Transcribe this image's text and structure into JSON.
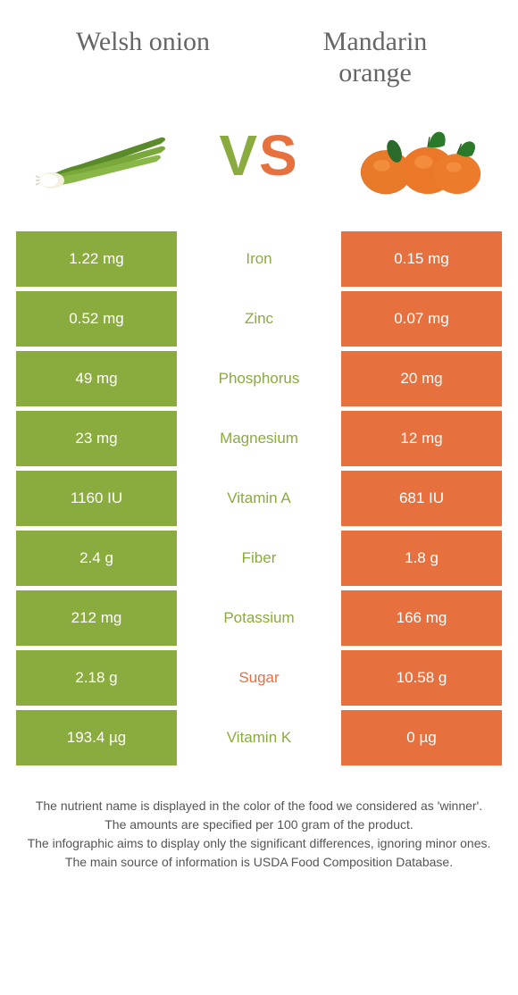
{
  "left": {
    "title": "Welsh onion"
  },
  "right": {
    "title": "Mandarin orange"
  },
  "vs": {
    "v": "V",
    "s": "S"
  },
  "colors": {
    "left": "#8aab3e",
    "right": "#e7703f",
    "text": "#555555"
  },
  "rows": [
    {
      "nutrient": "Iron",
      "left": "1.22 mg",
      "right": "0.15 mg",
      "winner": "left"
    },
    {
      "nutrient": "Zinc",
      "left": "0.52 mg",
      "right": "0.07 mg",
      "winner": "left"
    },
    {
      "nutrient": "Phosphorus",
      "left": "49 mg",
      "right": "20 mg",
      "winner": "left"
    },
    {
      "nutrient": "Magnesium",
      "left": "23 mg",
      "right": "12 mg",
      "winner": "left"
    },
    {
      "nutrient": "Vitamin A",
      "left": "1160 IU",
      "right": "681 IU",
      "winner": "left"
    },
    {
      "nutrient": "Fiber",
      "left": "2.4 g",
      "right": "1.8 g",
      "winner": "left"
    },
    {
      "nutrient": "Potassium",
      "left": "212 mg",
      "right": "166 mg",
      "winner": "left"
    },
    {
      "nutrient": "Sugar",
      "left": "2.18 g",
      "right": "10.58 g",
      "winner": "right"
    },
    {
      "nutrient": "Vitamin K",
      "left": "193.4 µg",
      "right": "0 µg",
      "winner": "left"
    }
  ],
  "footer": {
    "l1": "The nutrient name is displayed in the color of the food we considered as 'winner'.",
    "l2": "The amounts are specified per 100 gram of the product.",
    "l3": "The infographic aims to display only the significant differences, ignoring minor ones.",
    "l4": "The main source of information is USDA Food Composition Database."
  }
}
